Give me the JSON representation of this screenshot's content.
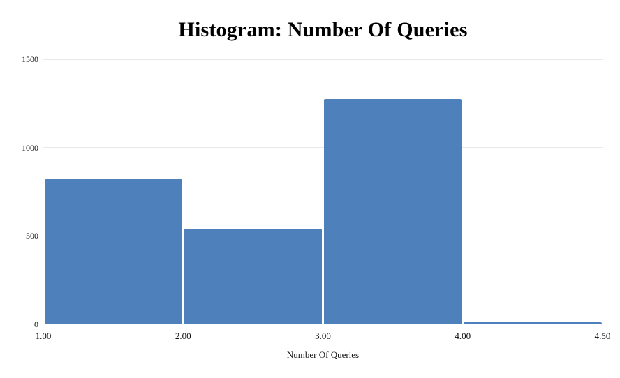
{
  "chart_data": {
    "type": "bar",
    "subtype": "histogram",
    "title": "Histogram: Number Of Queries",
    "xlabel": "Number Of Queries",
    "ylabel": "",
    "bin_edges": [
      1.0,
      2.0,
      3.0,
      4.0,
      4.5
    ],
    "x_tick_labels": [
      "1.00",
      "2.00",
      "3.00",
      "4.00",
      "4.50"
    ],
    "counts": [
      820,
      540,
      1275,
      10
    ],
    "y_ticks": [
      0,
      500,
      1000,
      1500
    ],
    "y_tick_labels": [
      "0",
      "500",
      "1000",
      "1500"
    ],
    "ylim": [
      0,
      1500
    ],
    "grid": "horizontal",
    "legend": "none",
    "note": "last bin 4.00-4.50 is half-width in data but drawn at equal display width",
    "colors": {
      "bar": "#4e80bc",
      "gridline": "#e8e8e8",
      "text": "#111111",
      "title": "#000000",
      "background": "#ffffff"
    }
  }
}
